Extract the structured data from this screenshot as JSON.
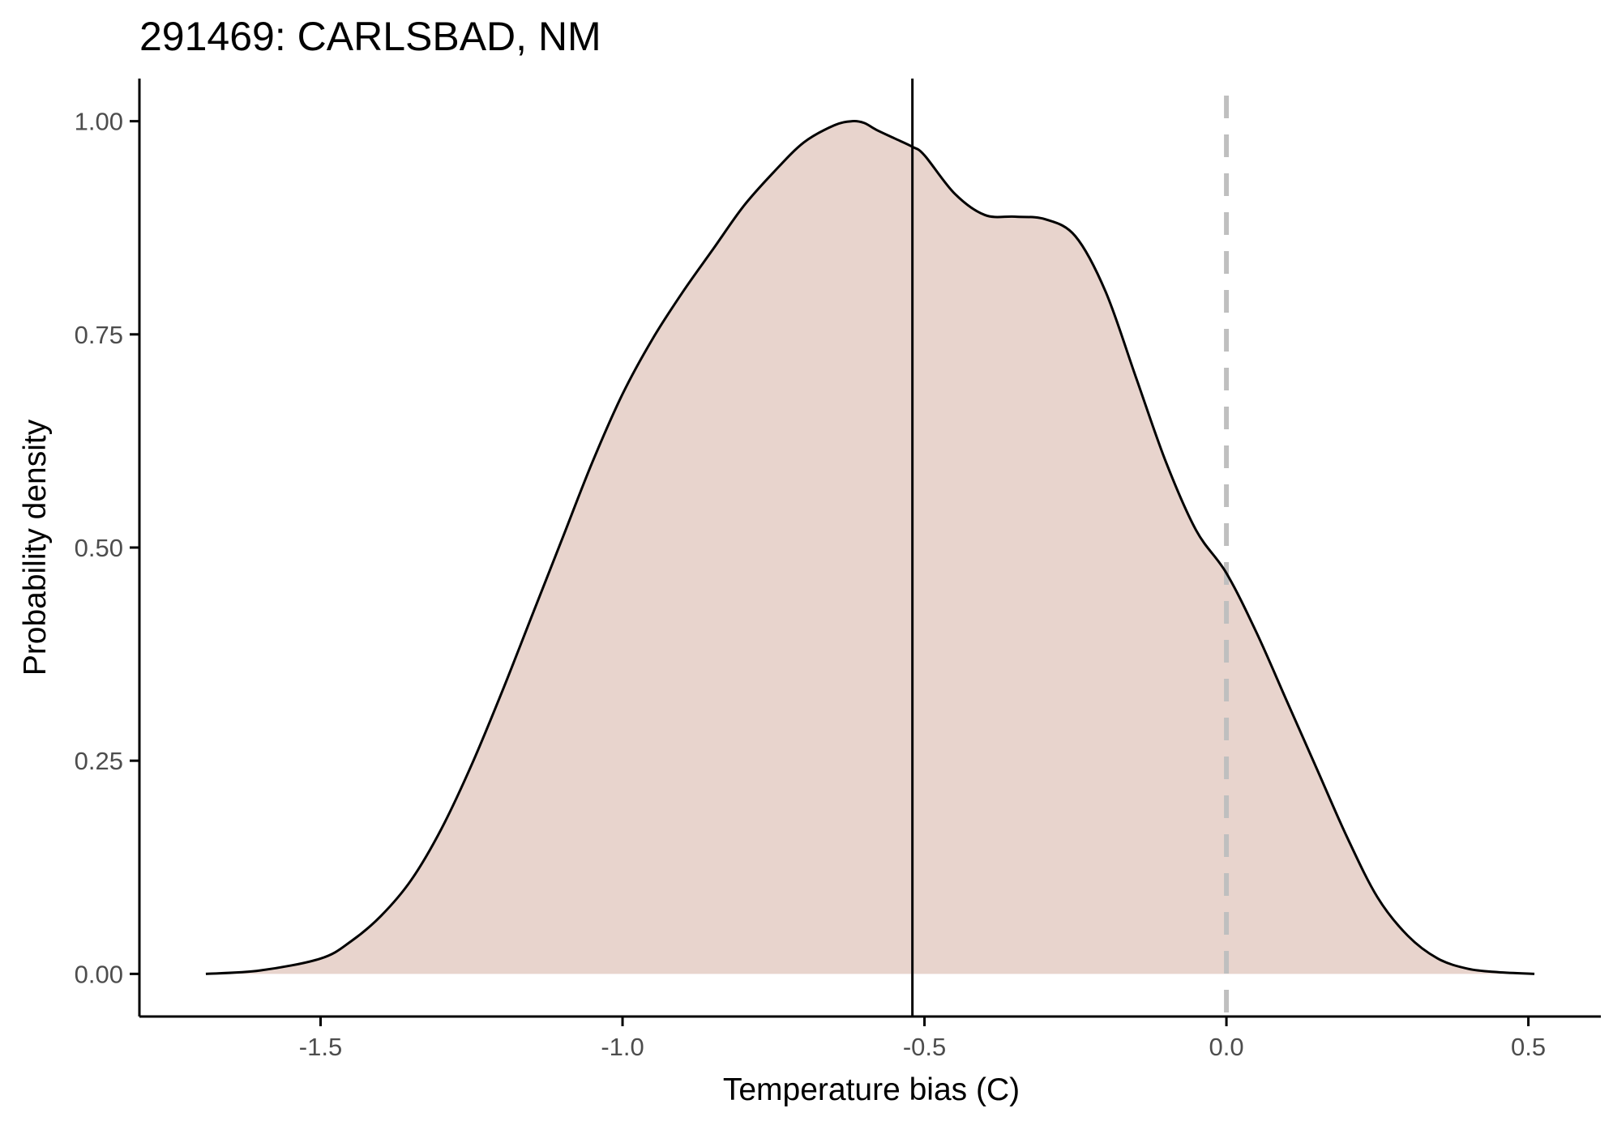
{
  "chart_data": {
    "type": "area",
    "title": "291469: CARLSBAD, NM",
    "xlabel": "Temperature bias (C)",
    "ylabel": "Probability density",
    "xlim": [
      -1.8,
      0.62
    ],
    "ylim": [
      -0.05,
      1.05
    ],
    "x_ticks": [
      -1.5,
      -1.0,
      -0.5,
      0.0,
      0.5
    ],
    "x_tick_labels": [
      "-1.5",
      "-1.0",
      "-0.5",
      "0.0",
      "0.5"
    ],
    "y_ticks": [
      0.0,
      0.25,
      0.5,
      0.75,
      1.0
    ],
    "y_tick_labels": [
      "0.00",
      "0.25",
      "0.50",
      "0.75",
      "1.00"
    ],
    "grid": false,
    "series": [
      {
        "x": [
          -1.69,
          -1.6,
          -1.5,
          -1.45,
          -1.4,
          -1.35,
          -1.3,
          -1.25,
          -1.2,
          -1.15,
          -1.1,
          -1.05,
          -1.0,
          -0.95,
          -0.9,
          -0.85,
          -0.8,
          -0.75,
          -0.7,
          -0.65,
          -0.62,
          -0.6,
          -0.58,
          -0.55,
          -0.52,
          -0.5,
          -0.45,
          -0.4,
          -0.35,
          -0.3,
          -0.25,
          -0.2,
          -0.15,
          -0.1,
          -0.05,
          0.0,
          0.05,
          0.1,
          0.15,
          0.2,
          0.25,
          0.3,
          0.35,
          0.4,
          0.45,
          0.51
        ],
        "y": [
          0.0,
          0.004,
          0.018,
          0.038,
          0.068,
          0.11,
          0.17,
          0.245,
          0.33,
          0.42,
          0.51,
          0.6,
          0.68,
          0.745,
          0.8,
          0.85,
          0.9,
          0.94,
          0.975,
          0.995,
          1.0,
          0.998,
          0.99,
          0.98,
          0.97,
          0.96,
          0.915,
          0.89,
          0.888,
          0.885,
          0.865,
          0.8,
          0.7,
          0.6,
          0.52,
          0.47,
          0.4,
          0.32,
          0.24,
          0.16,
          0.09,
          0.045,
          0.018,
          0.006,
          0.002,
          0.0
        ]
      }
    ],
    "vlines": [
      {
        "x": -0.52,
        "style": "solid",
        "color": "#000000"
      },
      {
        "x": 0.0,
        "style": "dashed",
        "color": "#bfbfbf"
      }
    ],
    "colors": {
      "fill": "#e8d4cd",
      "line": "#000000",
      "axis": "#000000",
      "tick_label": "#4d4d4d"
    }
  }
}
